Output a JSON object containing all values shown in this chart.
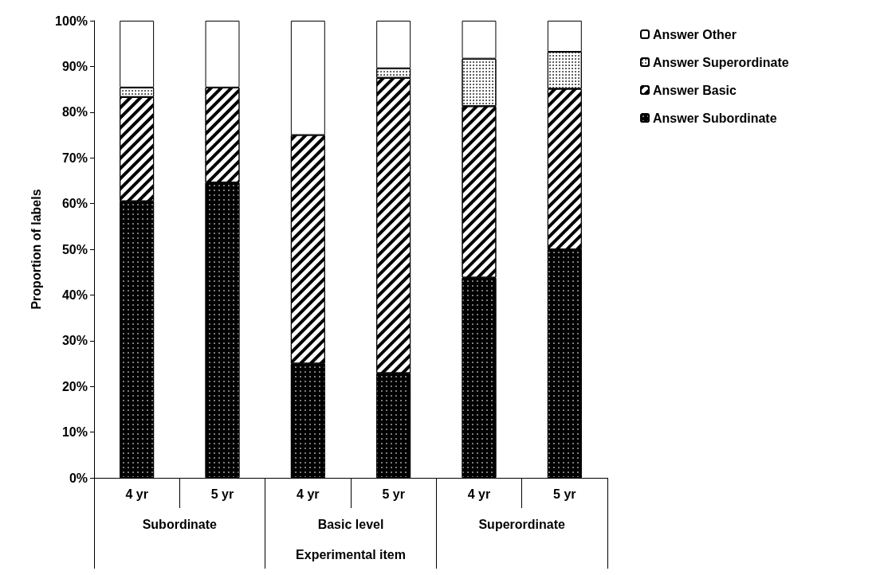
{
  "chart_data": {
    "type": "bar",
    "stacked": true,
    "xlabel": "Experimental item",
    "ylabel": "Proportion of labels",
    "categories": [
      "4 yr",
      "5 yr",
      "4 yr",
      "5 yr",
      "4 yr",
      "5 yr"
    ],
    "annotations": [
      "Subordinate",
      "Basic level",
      "Superordinate"
    ],
    "series": [
      {
        "name": "Answer Subordinate",
        "color": "#000000",
        "values": [
          60.5,
          64.6,
          25,
          22.9,
          43.8,
          50
        ]
      },
      {
        "name": "Answer Basic",
        "color": "#ffffff",
        "values": [
          22.8,
          20.8,
          50,
          64.6,
          37.5,
          35.1
        ]
      },
      {
        "name": "Answer Superordinate",
        "color": "#ffffff",
        "values": [
          2.1,
          0,
          0,
          2.1,
          10.4,
          8.1
        ]
      },
      {
        "name": "Answer Other",
        "color": "#ffffff",
        "values": [
          14.6,
          14.6,
          25,
          10.4,
          8.3,
          6.8
        ]
      }
    ],
    "ylim": [
      0,
      100
    ],
    "yticks": [
      {
        "value": 0,
        "label": "0%"
      },
      {
        "value": 10,
        "label": "10%"
      },
      {
        "value": 20,
        "label": "20%"
      },
      {
        "value": 30,
        "label": "30%"
      },
      {
        "value": 40,
        "label": "40%"
      },
      {
        "value": 50,
        "label": "50%"
      },
      {
        "value": 60,
        "label": "60%"
      },
      {
        "value": 70,
        "label": "70%"
      },
      {
        "value": 80,
        "label": "80%"
      },
      {
        "value": 90,
        "label": "90%"
      },
      {
        "value": 100,
        "label": "100%"
      }
    ],
    "grid": false,
    "legend": "top right"
  }
}
